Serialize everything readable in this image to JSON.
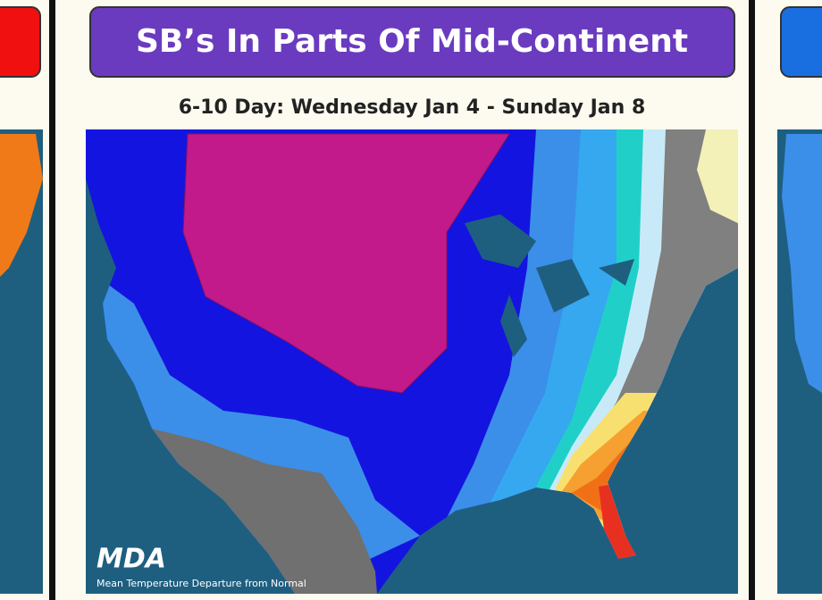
{
  "header": {
    "title": "SB’s In Parts Of Mid-Continent"
  },
  "subtitle": "6-10 Day: Wednesday Jan 4 - Sunday Jan 8",
  "map": {
    "logo": "MDA",
    "caption": "Mean Temperature Departure from Normal"
  }
}
